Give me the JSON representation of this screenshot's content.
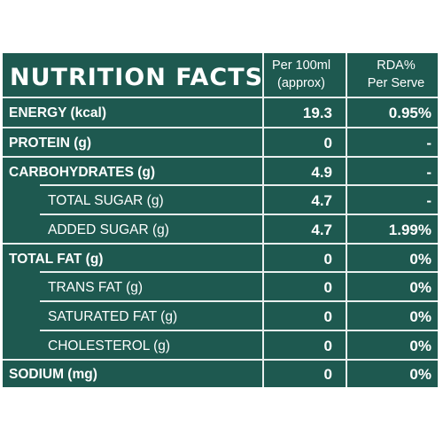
{
  "header": {
    "title": "NUTRITION FACTS",
    "per_line1": "Per 100ml",
    "per_line2": "(approx)",
    "rda_line1": "RDA%",
    "rda_line2": "Per Serve"
  },
  "rows": [
    {
      "label": "ENERGY (kcal)",
      "per": "19.3",
      "rda": "0.95%"
    },
    {
      "label": "PROTEIN (g)",
      "per": "0",
      "rda": "-"
    },
    {
      "label": "CARBOHYDRATES (g)",
      "per": "4.9",
      "rda": "-"
    },
    {
      "label": "TOTAL SUGAR (g)",
      "per": "4.7",
      "rda": "-"
    },
    {
      "label": "ADDED SUGAR (g)",
      "per": "4.7",
      "rda": "1.99%"
    },
    {
      "label": "TOTAL FAT (g)",
      "per": "0",
      "rda": "0%"
    },
    {
      "label": "TRANS FAT (g)",
      "per": "0",
      "rda": "0%"
    },
    {
      "label": "SATURATED FAT (g)",
      "per": "0",
      "rda": "0%"
    },
    {
      "label": "CHOLESTEROL (g)",
      "per": "0",
      "rda": "0%"
    },
    {
      "label": "SODIUM (mg)",
      "per": "0",
      "rda": "0%"
    }
  ],
  "colors": {
    "panel": "#1e5950",
    "text": "#ffffff",
    "rules": "#e9efee"
  }
}
